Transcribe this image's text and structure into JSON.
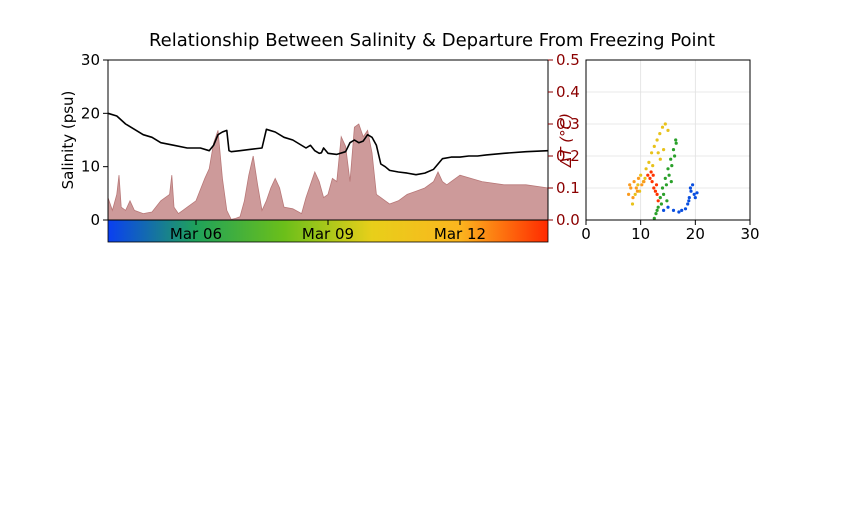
{
  "figure": {
    "title": "Relationship Between Salinity & Departure From Freezing Point"
  },
  "chart_data": [
    {
      "type": "line",
      "name": "timeseries",
      "xlabel": "",
      "ylabel": "Salinity (psu)",
      "y2label": "ΔT (°C)",
      "x_range": [
        "Mar 04",
        "Mar 14"
      ],
      "ylim": [
        0,
        30
      ],
      "y2lim": [
        0.0,
        0.5
      ],
      "yticks": [
        "0",
        "10",
        "20",
        "30"
      ],
      "y2ticks": [
        "0.0",
        "0.1",
        "0.2",
        "0.3",
        "0.4",
        "0.5"
      ],
      "xticks": [
        "Mar 06",
        "Mar 09",
        "Mar 12"
      ],
      "xtick_days": [
        2,
        5,
        8
      ],
      "y2_color": "#8b0000",
      "line_color": "#000000",
      "area_color": "#cd9a9a",
      "colorbar_colors": [
        "#0a3ff2",
        "#1fa25a",
        "#6bbf1a",
        "#e8cf1a",
        "#fbb51e",
        "#ff2a00"
      ],
      "salinity": {
        "days": [
          0,
          0.2,
          0.4,
          0.6,
          0.8,
          1.0,
          1.2,
          1.5,
          1.8,
          2.1,
          2.3,
          2.4,
          2.5,
          2.6,
          2.7,
          2.75,
          2.8,
          3.0,
          3.2,
          3.4,
          3.5,
          3.6,
          3.8,
          4.0,
          4.2,
          4.5,
          4.6,
          4.7,
          4.8,
          4.85,
          4.9,
          5.0,
          5.2,
          5.4,
          5.5,
          5.6,
          5.7,
          5.8,
          5.9,
          6.0,
          6.1,
          6.2,
          6.3,
          6.4,
          6.6,
          6.8,
          7.0,
          7.2,
          7.4,
          7.6,
          7.8,
          8.0,
          8.2,
          8.4,
          8.6,
          9.0,
          9.5,
          10.0
        ],
        "values": [
          20,
          19.5,
          18,
          17,
          16,
          15.5,
          14.5,
          14.0,
          13.5,
          13.5,
          13.0,
          14,
          16,
          16.5,
          16.8,
          13.0,
          12.8,
          13.0,
          13.2,
          13.4,
          13.5,
          17,
          16.5,
          15.5,
          15,
          13.5,
          14.0,
          13.0,
          12.5,
          12.6,
          13.5,
          12.5,
          12.3,
          12.8,
          14.5,
          15.0,
          14.5,
          14.8,
          16,
          15.5,
          14,
          10.5,
          10.0,
          9.3,
          9.0,
          8.8,
          8.5,
          8.8,
          9.5,
          11.5,
          11.8,
          11.8,
          12.0,
          12.0,
          12.2,
          12.5,
          12.8,
          13.0
        ]
      },
      "delta_t": {
        "days": [
          0,
          0.1,
          0.2,
          0.25,
          0.3,
          0.4,
          0.5,
          0.6,
          0.7,
          0.8,
          1.0,
          1.2,
          1.4,
          1.45,
          1.5,
          1.6,
          1.7,
          1.8,
          2.0,
          2.2,
          2.3,
          2.4,
          2.5,
          2.6,
          2.7,
          2.8,
          2.9,
          3.0,
          3.1,
          3.2,
          3.3,
          3.4,
          3.5,
          3.6,
          3.7,
          3.8,
          3.9,
          4.0,
          4.2,
          4.4,
          4.5,
          4.6,
          4.7,
          4.8,
          4.9,
          5.0,
          5.1,
          5.2,
          5.3,
          5.4,
          5.5,
          5.6,
          5.7,
          5.8,
          5.9,
          6.0,
          6.1,
          6.2,
          6.3,
          6.4,
          6.6,
          6.8,
          7.0,
          7.2,
          7.4,
          7.5,
          7.6,
          7.7,
          7.8,
          8.0,
          8.5,
          9.0,
          9.5,
          10.0
        ],
        "values": [
          0.07,
          0.03,
          0.08,
          0.14,
          0.04,
          0.03,
          0.06,
          0.03,
          0.025,
          0.02,
          0.025,
          0.06,
          0.08,
          0.14,
          0.04,
          0.02,
          0.03,
          0.04,
          0.06,
          0.13,
          0.16,
          0.24,
          0.28,
          0.13,
          0.03,
          0.002,
          0.005,
          0.01,
          0.06,
          0.14,
          0.2,
          0.11,
          0.03,
          0.06,
          0.1,
          0.13,
          0.1,
          0.04,
          0.035,
          0.02,
          0.07,
          0.11,
          0.15,
          0.12,
          0.07,
          0.08,
          0.13,
          0.12,
          0.26,
          0.23,
          0.12,
          0.29,
          0.3,
          0.26,
          0.28,
          0.21,
          0.08,
          0.07,
          0.06,
          0.05,
          0.06,
          0.08,
          0.09,
          0.1,
          0.12,
          0.15,
          0.12,
          0.11,
          0.12,
          0.14,
          0.12,
          0.11,
          0.11,
          0.1
        ]
      }
    },
    {
      "type": "scatter",
      "name": "salinity_vs_deltaT",
      "xlabel": "",
      "ylabel": "",
      "xlim": [
        0,
        30
      ],
      "ylim": [
        0.0,
        0.5
      ],
      "xticks": [
        "0",
        "10",
        "20",
        "30"
      ],
      "grid": true,
      "clusters": [
        {
          "color": "#0a4fe0",
          "points": [
            [
              14.2,
              0.03
            ],
            [
              15.0,
              0.04
            ],
            [
              16.0,
              0.03
            ],
            [
              17.0,
              0.025
            ],
            [
              17.5,
              0.03
            ],
            [
              18.2,
              0.035
            ],
            [
              18.6,
              0.05
            ],
            [
              18.9,
              0.07
            ],
            [
              19.2,
              0.09
            ],
            [
              19.5,
              0.11
            ],
            [
              19.8,
              0.08
            ],
            [
              20.3,
              0.085
            ],
            [
              20.0,
              0.07
            ],
            [
              18.8,
              0.06
            ],
            [
              19.1,
              0.1
            ]
          ]
        },
        {
          "color": "#2aa02a",
          "points": [
            [
              12.5,
              0.005
            ],
            [
              12.8,
              0.02
            ],
            [
              13.2,
              0.04
            ],
            [
              13.6,
              0.07
            ],
            [
              14.0,
              0.1
            ],
            [
              14.5,
              0.13
            ],
            [
              15.0,
              0.16
            ],
            [
              15.5,
              0.19
            ],
            [
              16.0,
              0.22
            ],
            [
              16.4,
              0.25
            ],
            [
              13.8,
              0.05
            ],
            [
              14.2,
              0.08
            ],
            [
              14.7,
              0.11
            ],
            [
              15.2,
              0.14
            ],
            [
              15.7,
              0.17
            ],
            [
              16.2,
              0.2
            ],
            [
              13.0,
              0.03
            ],
            [
              14.8,
              0.06
            ],
            [
              15.6,
              0.12
            ],
            [
              16.5,
              0.24
            ]
          ]
        },
        {
          "color": "#e8c21a",
          "points": [
            [
              8.5,
              0.05
            ],
            [
              9.0,
              0.08
            ],
            [
              9.5,
              0.11
            ],
            [
              10.0,
              0.14
            ],
            [
              10.5,
              0.12
            ],
            [
              11.0,
              0.16
            ],
            [
              11.5,
              0.18
            ],
            [
              12.0,
              0.21
            ],
            [
              12.5,
              0.23
            ],
            [
              13.0,
              0.25
            ],
            [
              13.5,
              0.27
            ],
            [
              14.0,
              0.29
            ],
            [
              14.5,
              0.3
            ],
            [
              15.0,
              0.28
            ],
            [
              14.2,
              0.22
            ],
            [
              13.6,
              0.19
            ],
            [
              9.8,
              0.09
            ],
            [
              10.8,
              0.13
            ],
            [
              12.2,
              0.17
            ],
            [
              13.2,
              0.21
            ]
          ]
        },
        {
          "color": "#fb9a1e",
          "points": [
            [
              7.8,
              0.08
            ],
            [
              8.2,
              0.1
            ],
            [
              8.8,
              0.12
            ],
            [
              9.2,
              0.1
            ],
            [
              9.6,
              0.13
            ],
            [
              10.2,
              0.11
            ],
            [
              8.6,
              0.07
            ],
            [
              9.4,
              0.09
            ],
            [
              10.6,
              0.12
            ],
            [
              8.0,
              0.11
            ]
          ]
        },
        {
          "color": "#ff3300",
          "points": [
            [
              11.3,
              0.14
            ],
            [
              11.7,
              0.13
            ],
            [
              12.1,
              0.12
            ],
            [
              12.4,
              0.1
            ],
            [
              12.7,
              0.09
            ],
            [
              13.0,
              0.08
            ],
            [
              12.3,
              0.14
            ],
            [
              12.9,
              0.11
            ],
            [
              11.9,
              0.15
            ],
            [
              13.2,
              0.06
            ]
          ]
        }
      ]
    }
  ]
}
